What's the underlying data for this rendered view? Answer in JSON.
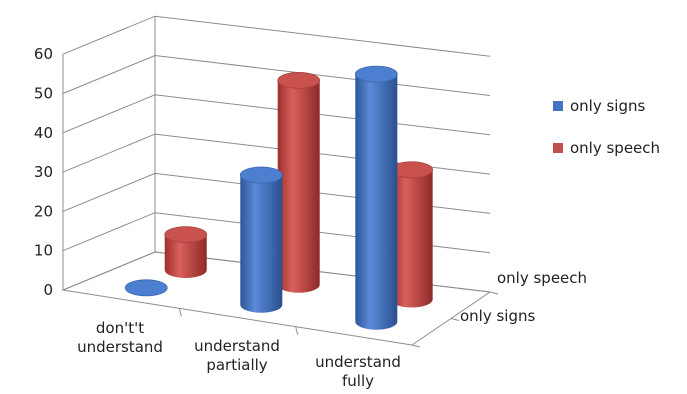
{
  "chart_data": {
    "type": "bar",
    "subtype": "3d-cylinder",
    "title": "",
    "xlabel": "",
    "ylabel": "",
    "ylim": [
      0,
      60
    ],
    "yticks": [
      0,
      10,
      20,
      30,
      40,
      50,
      60
    ],
    "grid": true,
    "legend_position": "right",
    "categories": [
      "don't't understand",
      "understand partially",
      "understand fully"
    ],
    "category_lines": [
      [
        "don't't",
        "understand"
      ],
      [
        "understand",
        "partially"
      ],
      [
        "understand",
        "fully"
      ]
    ],
    "depth_labels": [
      "only speech",
      "only signs"
    ],
    "series": [
      {
        "name": "only signs",
        "color": "#4472c4",
        "values": [
          0,
          33,
          63
        ]
      },
      {
        "name": "only speech",
        "color": "#c0504d",
        "values": [
          9,
          52,
          33
        ]
      }
    ]
  }
}
